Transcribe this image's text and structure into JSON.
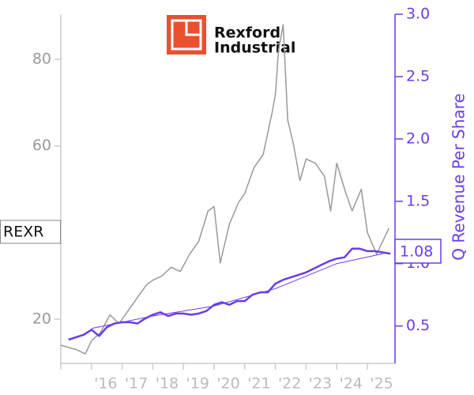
{
  "logo_text": [
    "Rexford",
    "Industrial"
  ],
  "chart_data": {
    "type": "line",
    "ticker_label": "REXR",
    "y2_label": "Q Revenue Per Share",
    "xlim": [
      2015.0,
      2025.9
    ],
    "xticks": [
      {
        "value": 2016,
        "label": "'16"
      },
      {
        "value": 2017,
        "label": "'17"
      },
      {
        "value": 2018,
        "label": "'18"
      },
      {
        "value": 2019,
        "label": "'19"
      },
      {
        "value": 2020,
        "label": "'20"
      },
      {
        "value": 2021,
        "label": "'21"
      },
      {
        "value": 2022,
        "label": "'22"
      },
      {
        "value": 2023,
        "label": "'23"
      },
      {
        "value": 2024,
        "label": "'24"
      },
      {
        "value": 2025,
        "label": "'25"
      }
    ],
    "ylim": [
      9.8,
      90.4
    ],
    "yticks": [
      20,
      60,
      80
    ],
    "y2lim": [
      0.2,
      3.0
    ],
    "y2ticks": [
      0.5,
      {
        "value": 1.0,
        "label": "1.0"
      },
      1.5,
      {
        "value": 2.0,
        "label": "2.0"
      },
      2.5,
      {
        "value": 3.0,
        "label": "3.0"
      }
    ],
    "series": [
      {
        "color": "#999999",
        "width": 1.5,
        "x": [
          2015.0,
          2015.5,
          2015.8,
          2016.0,
          2016.3,
          2016.6,
          2016.9,
          2017.2,
          2017.5,
          2017.8,
          2018.0,
          2018.3,
          2018.6,
          2018.9,
          2019.2,
          2019.5,
          2019.8,
          2020.0,
          2020.2,
          2020.5,
          2020.8,
          2021.0,
          2021.3,
          2021.6,
          2021.9,
          2022.0,
          2022.1,
          2022.25,
          2022.4,
          2022.6,
          2022.8,
          2023.0,
          2023.3,
          2023.6,
          2023.8,
          2024.0,
          2024.3,
          2024.5,
          2024.8,
          2025.0,
          2025.3,
          2025.5,
          2025.7
        ],
        "values": [
          14,
          13,
          12,
          15,
          17,
          21,
          19,
          22,
          25,
          28,
          29,
          30,
          32,
          31,
          35,
          38,
          45,
          46,
          33,
          42,
          47,
          49,
          55,
          58,
          68,
          72,
          82,
          88,
          66,
          60,
          52,
          57,
          56,
          53,
          45,
          56,
          49,
          45,
          50,
          40,
          35,
          38,
          41
        ]
      },
      {
        "color": "#6a3de8",
        "width": 2.5,
        "axis": "y2",
        "x": [
          2015.25,
          2015.75,
          2016.0,
          2016.25,
          2016.5,
          2016.75,
          2017.0,
          2017.25,
          2017.5,
          2017.75,
          2018.0,
          2018.25,
          2018.5,
          2018.75,
          2019.0,
          2019.25,
          2019.5,
          2019.75,
          2020.0,
          2020.25,
          2020.5,
          2020.75,
          2021.0,
          2021.25,
          2021.5,
          2021.75,
          2022.0,
          2022.25,
          2022.5,
          2022.75,
          2023.0,
          2023.25,
          2023.5,
          2023.75,
          2024.0,
          2024.25,
          2024.5,
          2024.75,
          2025.0,
          2025.25,
          2025.5,
          2025.75
        ],
        "values": [
          0.39,
          0.43,
          0.47,
          0.42,
          0.49,
          0.52,
          0.53,
          0.53,
          0.52,
          0.56,
          0.59,
          0.61,
          0.58,
          0.6,
          0.6,
          0.59,
          0.6,
          0.62,
          0.67,
          0.69,
          0.67,
          0.7,
          0.7,
          0.75,
          0.77,
          0.77,
          0.84,
          0.87,
          0.89,
          0.91,
          0.93,
          0.96,
          0.99,
          1.02,
          1.04,
          1.05,
          1.12,
          1.12,
          1.1,
          1.1,
          1.09,
          1.08
        ]
      },
      {
        "color": "#6a3de8",
        "width": 1,
        "axis": "y2",
        "x": [
          2016.0,
          2018.0,
          2020.0,
          2022.0,
          2024.0,
          2025.5
        ],
        "values": [
          0.48,
          0.58,
          0.66,
          0.8,
          1.0,
          1.08
        ]
      }
    ]
  }
}
